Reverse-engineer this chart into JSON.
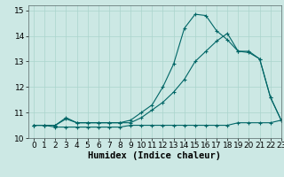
{
  "xlabel": "Humidex (Indice chaleur)",
  "background_color": "#cce8e4",
  "line_color": "#006666",
  "xlim": [
    -0.5,
    23
  ],
  "ylim": [
    10,
    15.2
  ],
  "yticks": [
    10,
    11,
    12,
    13,
    14,
    15
  ],
  "xticks": [
    0,
    1,
    2,
    3,
    4,
    5,
    6,
    7,
    8,
    9,
    10,
    11,
    12,
    13,
    14,
    15,
    16,
    17,
    18,
    19,
    20,
    21,
    22,
    23
  ],
  "line1_x": [
    0,
    1,
    2,
    3,
    4,
    5,
    6,
    7,
    8,
    9,
    10,
    11,
    12,
    13,
    14,
    15,
    16,
    17,
    18,
    19,
    20,
    21,
    22,
    23
  ],
  "line1_y": [
    10.5,
    10.5,
    10.43,
    10.43,
    10.43,
    10.43,
    10.43,
    10.43,
    10.43,
    10.5,
    10.5,
    10.5,
    10.5,
    10.5,
    10.5,
    10.5,
    10.5,
    10.5,
    10.5,
    10.6,
    10.6,
    10.6,
    10.6,
    10.7
  ],
  "line2_x": [
    0,
    1,
    2,
    3,
    4,
    5,
    6,
    7,
    8,
    9,
    10,
    11,
    12,
    13,
    14,
    15,
    16,
    17,
    18,
    19,
    20,
    21,
    22,
    23
  ],
  "line2_y": [
    10.5,
    10.5,
    10.5,
    10.75,
    10.6,
    10.6,
    10.6,
    10.6,
    10.6,
    10.6,
    10.8,
    11.1,
    11.4,
    11.8,
    12.3,
    13.0,
    13.4,
    13.8,
    14.1,
    13.4,
    13.35,
    13.1,
    11.6,
    10.7
  ],
  "line3_x": [
    0,
    1,
    2,
    3,
    4,
    5,
    6,
    7,
    8,
    9,
    10,
    11,
    12,
    13,
    14,
    15,
    16,
    17,
    18,
    19,
    20,
    21,
    22,
    23
  ],
  "line3_y": [
    10.5,
    10.5,
    10.5,
    10.8,
    10.6,
    10.6,
    10.6,
    10.6,
    10.6,
    10.7,
    11.0,
    11.3,
    12.0,
    12.9,
    14.3,
    14.85,
    14.8,
    14.2,
    13.85,
    13.4,
    13.4,
    13.1,
    11.6,
    10.7
  ],
  "grid_color": "#aad4cc",
  "xlabel_fontsize": 7.5,
  "tick_fontsize": 6.5
}
